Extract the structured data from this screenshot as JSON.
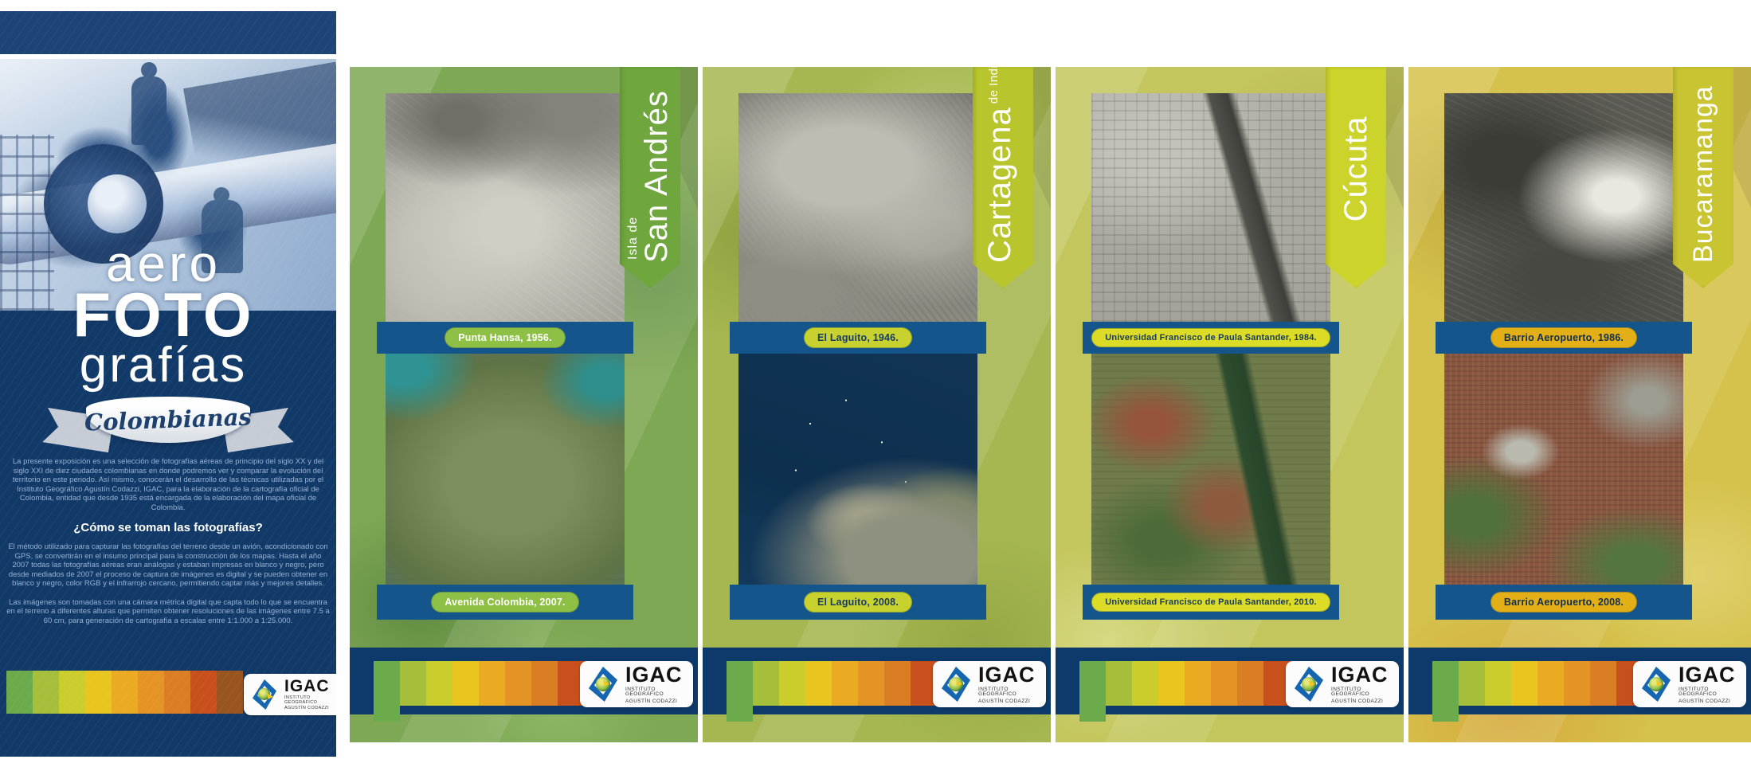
{
  "intro_panel": {
    "title": {
      "line1": "aero",
      "line2": "FOTO",
      "line3": "grafías",
      "ribbon": "Colombianas"
    },
    "paragraph1": "La presente exposición es una selección de fotografías aéreas de principio del siglo XX y del siglo XXI de diez ciudades colombianas en donde podremos ver y comparar la evolución del territorio en este periodo. Así mismo, conocerán el desarrollo de las técnicas utilizadas por el Instituto Geográfico Agustín Codazzi, IGAC, para la elaboración de la cartografía oficial de Colombia, entidad que desde 1935 está encargada de la elaboración del mapa oficial de Colombia.",
    "heading": "¿Cómo se toman las fotografías?",
    "paragraph2": "El método utilizado para capturar las fotografías del terreno desde un avión, acondicionado con GPS, se convertirán en el insumo principal para la construcción de los mapas. Hasta el año 2007 todas las fotografías aéreas eran análogas y estaban impresas en blanco y negro, pero desde mediados de 2007 el proceso de captura de imágenes es digital y se pueden obtener en blanco y negro, color RGB y el infrarrojo cercano, permitiendo captar más y mejores detalles.",
    "paragraph3": "Las imágenes son tomadas con una cámara métrica digital que capta todo lo que se encuentra en el terreno a diferentes alturas que permiten obtener resoluciones de las imágenes entre 7.5 a 60 cm, para generación de cartografía a escalas entre 1:1.000 a 1:25.000."
  },
  "igac": {
    "acronym": "IGAC",
    "sub1": "INSTITUTO GEOGRÁFICO",
    "sub2": "AGUSTÍN CODAZZI"
  },
  "city_panels": [
    {
      "prefix": "Isla de",
      "name": "San Andrés",
      "label_top": "Punta Hansa, 1956.",
      "label_bottom": "Avenida Colombia, 2007.",
      "accent": "#8fc046"
    },
    {
      "name": "Cartagena",
      "suffix": "de Indias",
      "label_top": "El Laguito, 1946.",
      "label_bottom": "El Laguito, 2008.",
      "accent": "#c8d22f"
    },
    {
      "name": "Cúcuta",
      "label_top": "Universidad Francisco de Paula Santander, 1984.",
      "label_bottom": "Universidad Francisco de Paula Santander, 2010.",
      "accent": "#dcdc26"
    },
    {
      "name": "Bucaramanga",
      "label_top": "Barrio Aeropuerto, 1986.",
      "label_bottom": "Barrio Aeropuerto, 2008.",
      "accent": "#e2af17"
    }
  ],
  "palette_strip": [
    "#6cab4c",
    "#a5bf3b",
    "#cbcd2c",
    "#e9c51f",
    "#eaaa22",
    "#e49425",
    "#da7e23",
    "#c8501d",
    "#98551f"
  ],
  "colors": {
    "navy_background": "#123a68",
    "navy_band": "#0d3a6b",
    "label_bar_blue": "#14568c",
    "panel_green": "#7fa854",
    "panel_olive": "#a6b751",
    "panel_yellow_green": "#c3c65c",
    "panel_yellow": "#d5c24c",
    "igac_blue": "#1565b0"
  }
}
